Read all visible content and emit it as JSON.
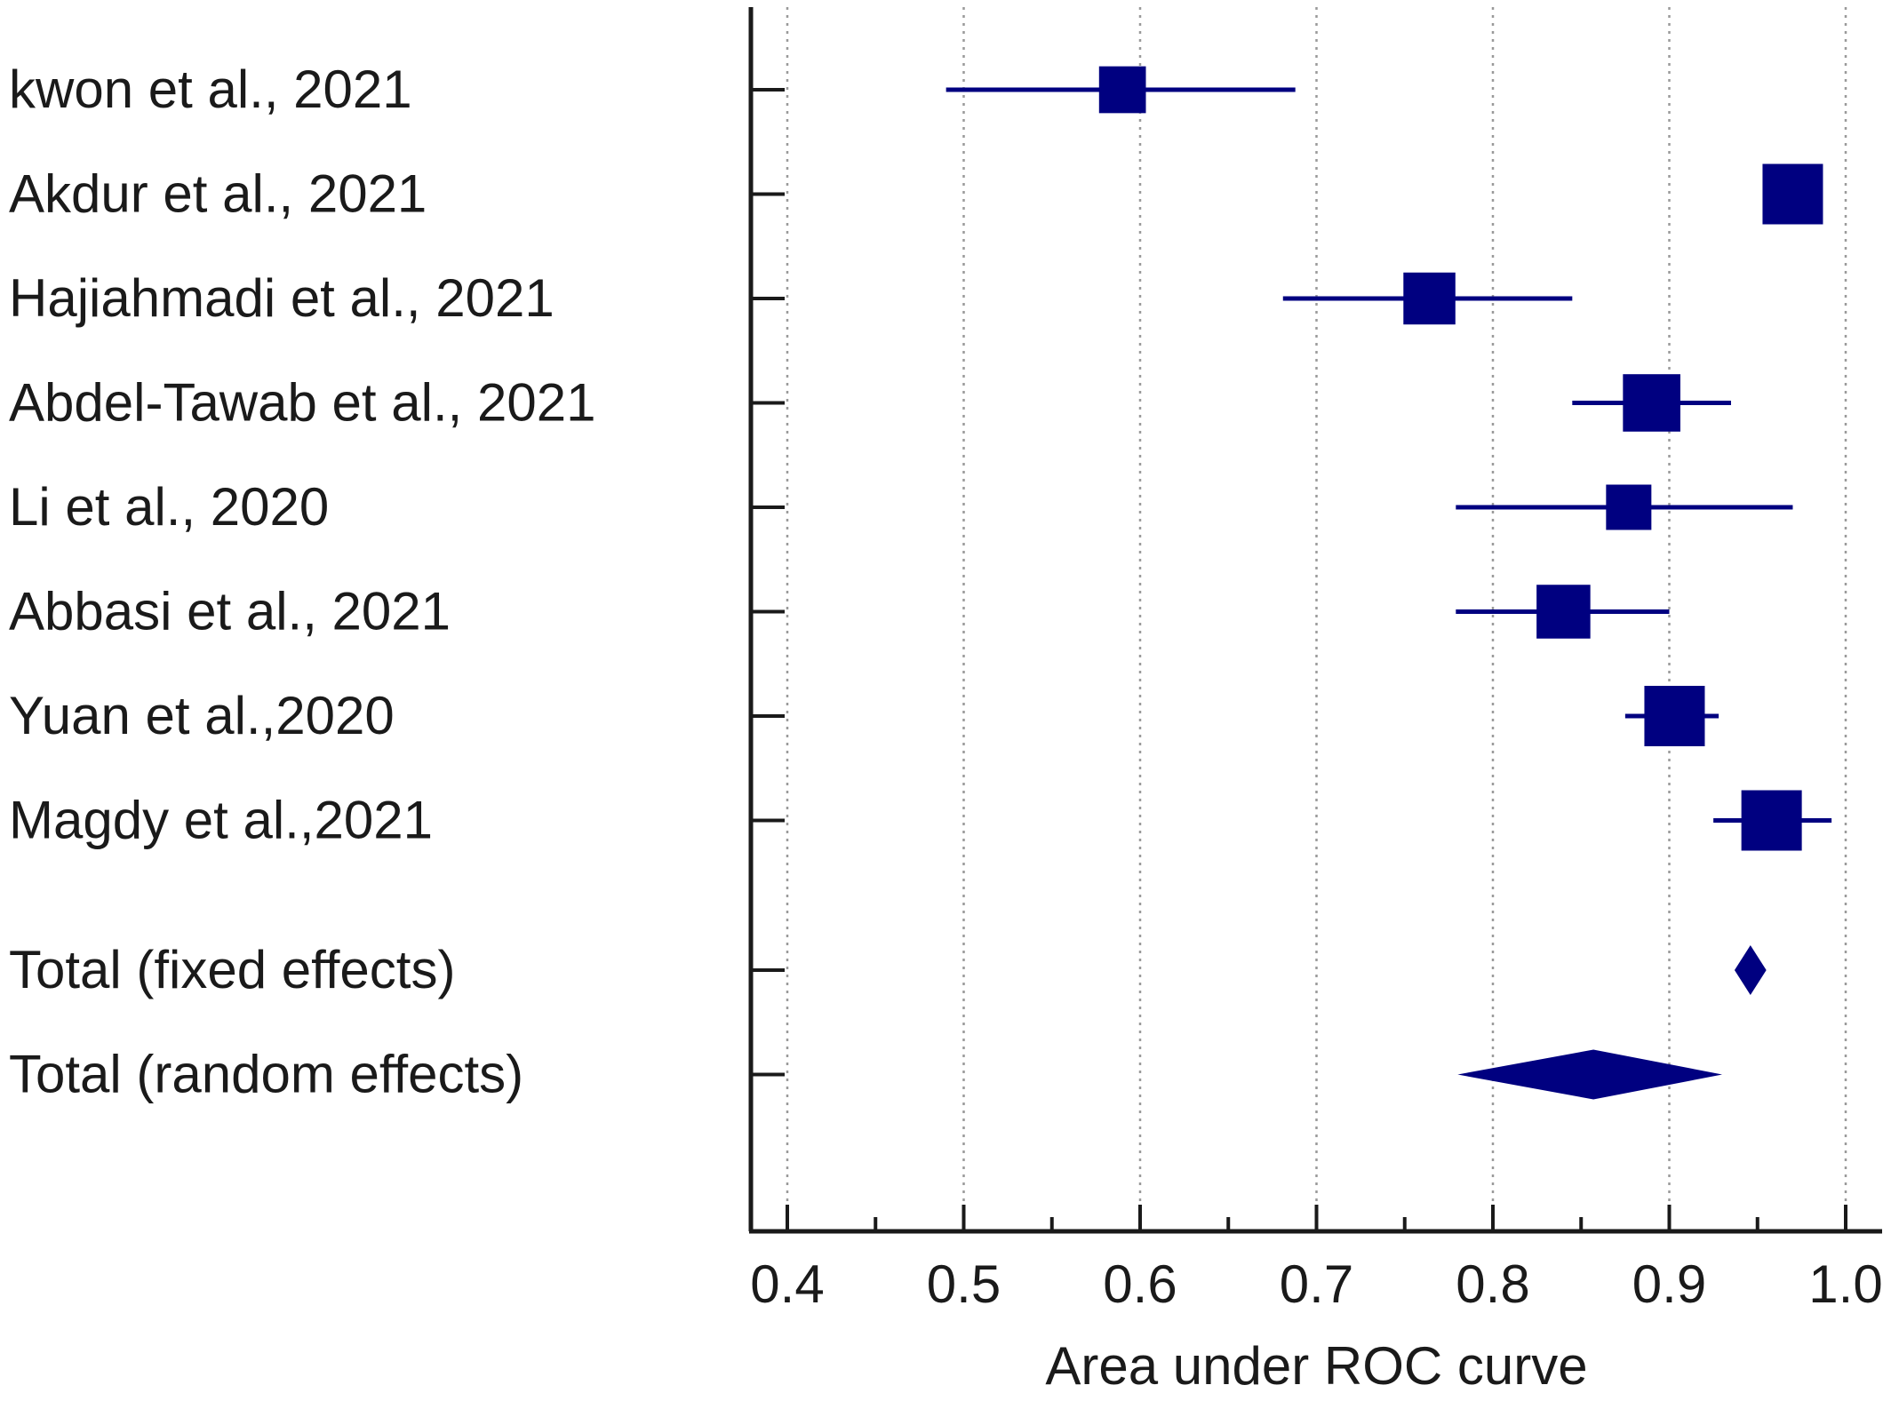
{
  "chart_data": {
    "type": "forest",
    "xlabel": "Area under ROC curve",
    "xlim": [
      0.38,
      1.02
    ],
    "xticks": [
      "0.4",
      "0.5",
      "0.6",
      "0.7",
      "0.8",
      "0.9",
      "1.0"
    ],
    "minor_ticks": [
      0.45,
      0.55,
      0.65,
      0.75,
      0.85,
      0.95
    ],
    "grid": "vertical-dotted",
    "colors": {
      "marker": "#000080",
      "axis": "#1a1a1a",
      "grid": "#9a9a9a"
    },
    "studies": [
      {
        "label": "kwon et al., 2021",
        "estimate": 0.59,
        "lower": 0.49,
        "upper": 0.688,
        "weight": 0.55
      },
      {
        "label": "Akdur et al., 2021",
        "estimate": 0.97,
        "lower": 0.97,
        "upper": 0.97,
        "weight": 1.0
      },
      {
        "label": "Hajiahmadi et al., 2021",
        "estimate": 0.764,
        "lower": 0.681,
        "upper": 0.845,
        "weight": 0.72
      },
      {
        "label": "Abdel-Tawab et al., 2021",
        "estimate": 0.89,
        "lower": 0.845,
        "upper": 0.935,
        "weight": 0.9
      },
      {
        "label": "Li et al., 2020",
        "estimate": 0.877,
        "lower": 0.779,
        "upper": 0.97,
        "weight": 0.5
      },
      {
        "label": "Abbasi et al., 2021",
        "estimate": 0.84,
        "lower": 0.779,
        "upper": 0.9,
        "weight": 0.78
      },
      {
        "label": "Yuan et al.,2020",
        "estimate": 0.903,
        "lower": 0.875,
        "upper": 0.928,
        "weight": 1.0
      },
      {
        "label": "Magdy et al.,2021",
        "estimate": 0.958,
        "lower": 0.925,
        "upper": 0.992,
        "weight": 1.0
      }
    ],
    "totals": [
      {
        "label": "Total (fixed effects)",
        "estimate": 0.946,
        "lower": 0.937,
        "upper": 0.955
      },
      {
        "label": "Total (random effects)",
        "estimate": 0.857,
        "lower": 0.78,
        "upper": 0.93
      }
    ]
  }
}
